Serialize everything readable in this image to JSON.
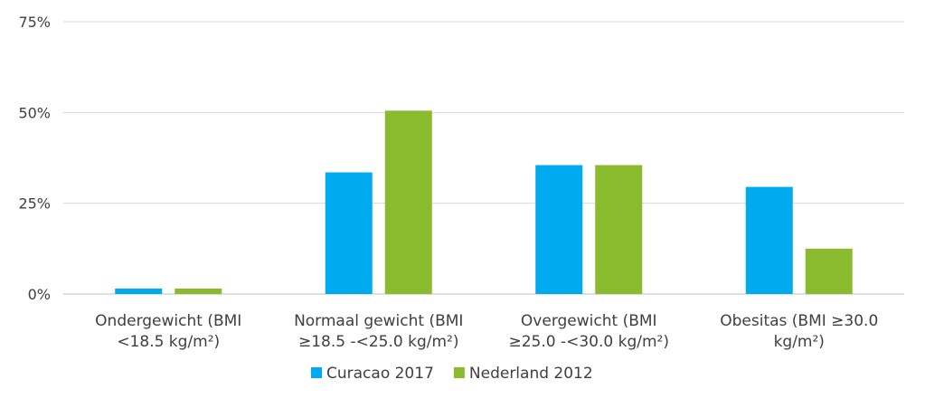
{
  "chart_data": {
    "type": "bar",
    "categories": [
      [
        "Ondergewicht (BMI",
        "<18.5 kg/m²)"
      ],
      [
        "Normaal gewicht (BMI",
        "≥18.5 -<25.0 kg/m²)"
      ],
      [
        "Overgewicht (BMI",
        "≥25.0 -<30.0 kg/m²)"
      ],
      [
        "Obesitas (BMI ≥30.0",
        "kg/m²)"
      ]
    ],
    "series": [
      {
        "name": "Curacao 2017",
        "color": "#00aaee",
        "values": [
          1.5,
          33.5,
          35.5,
          29.5
        ]
      },
      {
        "name": "Nederland 2012",
        "color": "#8aba2d",
        "values": [
          1.5,
          50.5,
          35.5,
          12.5
        ]
      }
    ],
    "yticks": [
      "0%",
      "25%",
      "50%",
      "75%"
    ],
    "ytick_values": [
      0,
      25,
      50,
      75
    ],
    "ylim": [
      0,
      75
    ],
    "grid": true,
    "legend": "bottom"
  }
}
